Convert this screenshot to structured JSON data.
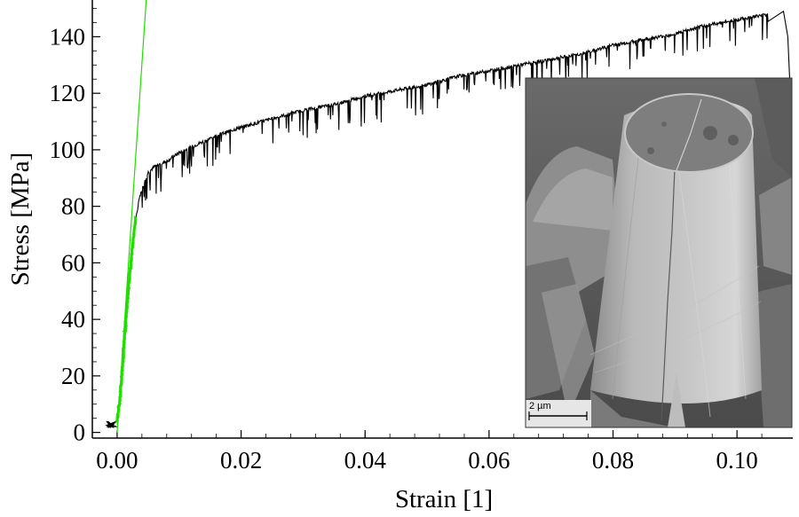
{
  "chart_data": {
    "type": "line",
    "xlabel": "Strain [1]",
    "ylabel": "Stress [MPa]",
    "xlim": [
      -0.004,
      0.109
    ],
    "ylim": [
      -2,
      153
    ],
    "x_ticks": [
      0.0,
      0.02,
      0.04,
      0.06,
      0.08,
      0.1
    ],
    "x_tick_labels": [
      "0.00",
      "0.02",
      "0.04",
      "0.06",
      "0.08",
      "0.10"
    ],
    "y_ticks": [
      0,
      20,
      40,
      60,
      80,
      100,
      120,
      140
    ],
    "y_tick_labels": [
      "0",
      "20",
      "40",
      "60",
      "80",
      "100",
      "120",
      "140"
    ],
    "grid": false,
    "series": [
      {
        "color": "#000000",
        "style": "serrated",
        "x": [
          -0.0018,
          -0.0005,
          0.0,
          0.0005,
          0.001,
          0.0015,
          0.002,
          0.0025,
          0.003,
          0.0035,
          0.004,
          0.005,
          0.006,
          0.008,
          0.01,
          0.013,
          0.016,
          0.02,
          0.025,
          0.03,
          0.035,
          0.04,
          0.045,
          0.05,
          0.055,
          0.06,
          0.065,
          0.07,
          0.075,
          0.08,
          0.085,
          0.09,
          0.095,
          0.1,
          0.105,
          0.1075,
          0.1082,
          0.1085
        ],
        "y": [
          2,
          3,
          4,
          13,
          27,
          42,
          55,
          66,
          75,
          82,
          86,
          92,
          94,
          96,
          99,
          102,
          105,
          108,
          111,
          114,
          116,
          119,
          121,
          123,
          126,
          128,
          130,
          132,
          134,
          137,
          139,
          141,
          144,
          146,
          148,
          149,
          140,
          125
        ]
      },
      {
        "color": "#22dd00",
        "style": "noisy",
        "x": [
          0.0,
          0.0005,
          0.001,
          0.0015,
          0.002,
          0.0025,
          0.003
        ],
        "y": [
          4,
          13,
          27,
          42,
          55,
          66,
          76
        ]
      },
      {
        "color": "#22dd00",
        "style": "fit",
        "x": [
          0.0,
          0.0047
        ],
        "y": [
          0,
          153
        ]
      }
    ]
  },
  "inset": {
    "type": "sem-micrograph",
    "scale_bar": "2 µm",
    "colors": {
      "background": "#505050",
      "pillar": "#b4b4b4",
      "top_face": "#7a7a7a"
    }
  }
}
